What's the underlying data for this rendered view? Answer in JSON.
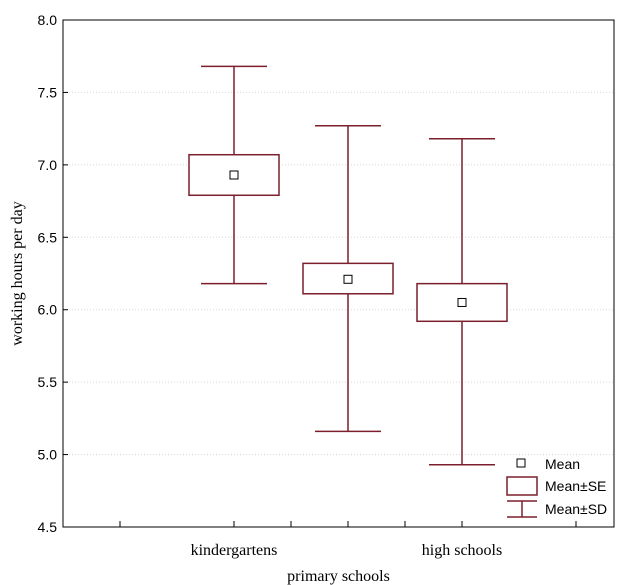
{
  "chart_data": {
    "type": "box",
    "xlabel": "primary schools",
    "ylabel": "working hours per day",
    "ylim": [
      4.5,
      8.0
    ],
    "yticks": [
      "4.5",
      "5.0",
      "5.5",
      "6.0",
      "6.5",
      "7.0",
      "7.5",
      "8.0"
    ],
    "categories": [
      "kindergartens",
      "",
      "high schools"
    ],
    "series": [
      {
        "mean": 6.93,
        "se_low": 6.79,
        "se_high": 7.07,
        "sd_low": 6.18,
        "sd_high": 7.68
      },
      {
        "mean": 6.21,
        "se_low": 6.11,
        "se_high": 6.32,
        "sd_low": 5.16,
        "sd_high": 7.27
      },
      {
        "mean": 6.05,
        "se_low": 5.92,
        "se_high": 6.18,
        "sd_low": 4.93,
        "sd_high": 7.18
      }
    ],
    "legend": {
      "position": "bottom-right",
      "mean": "Mean",
      "se": "Mean±SE",
      "sd": "Mean±SD"
    },
    "colors": {
      "box": "#7a1f2b",
      "grid": "#d8d8d8"
    },
    "grid": true
  }
}
